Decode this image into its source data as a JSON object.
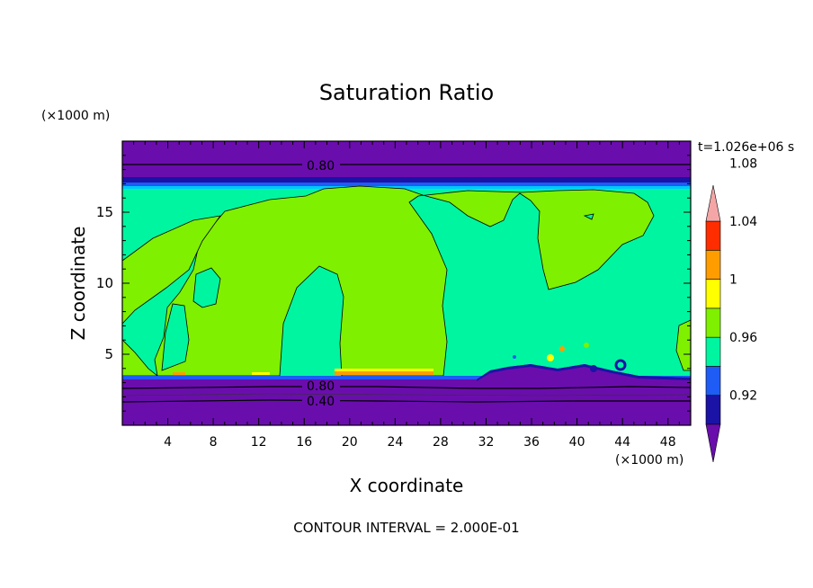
{
  "chart_data": {
    "type": "heatmap",
    "title": "Saturation Ratio",
    "xlabel": "X coordinate",
    "ylabel": "Z coordinate",
    "x_unit": "(×1000 m)",
    "y_unit": "(×1000 m)",
    "time_label": "t=1.026e+06 s",
    "footer": "CONTOUR INTERVAL = 2.000E-01",
    "xlim": [
      0,
      50
    ],
    "ylim": [
      0,
      20
    ],
    "x_ticks": [
      "4",
      "8",
      "12",
      "16",
      "20",
      "24",
      "28",
      "32",
      "36",
      "40",
      "44",
      "48"
    ],
    "y_ticks": [
      "5",
      "10",
      "15"
    ],
    "contour_labels": [
      "0.80",
      "0.80",
      "0.40"
    ],
    "colorbar": {
      "levels": [
        "0.92",
        "0.96",
        "1",
        "1.04",
        "1.08"
      ],
      "colors": [
        "#6a0dad",
        "#1a13a5",
        "#1e5cf5",
        "#00f5a0",
        "#7ff000",
        "#ffff00",
        "#ff9d00",
        "#ff2d00",
        "#f4a6a6"
      ]
    }
  }
}
